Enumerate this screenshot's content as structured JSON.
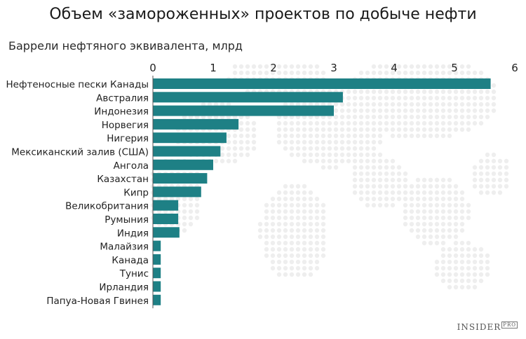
{
  "title": "Объем «замороженных» проектов по добыче нефти",
  "subtitle": "Баррели нефтяного эквивалента, млрд",
  "logo": {
    "brand": "INSIDER",
    "suffix": "PRO"
  },
  "colors": {
    "bar": "#1e8085",
    "axis": "#555555",
    "map": "#eeeeee"
  },
  "chart_data": {
    "type": "bar",
    "orientation": "horizontal",
    "title": "Объем «замороженных» проектов по добыче нефти",
    "subtitle": "Баррели нефтяного эквивалента, млрд",
    "xlim": [
      0,
      6
    ],
    "xticks": [
      "0",
      "1",
      "2",
      "3",
      "4",
      "5",
      "6"
    ],
    "grid": false,
    "categories": [
      "Нефтеносные пески Канады",
      "Австралия",
      "Индонезия",
      "Норвегия",
      "Нигерия",
      "Мексиканский залив (США)",
      "Ангола",
      "Казахстан",
      "Кипр",
      "Великобритания",
      "Румыния",
      "Индия",
      "Малайзия",
      "Канада",
      "Тунис",
      "Ирландия",
      "Папуа-Новая Гвинея"
    ],
    "values": [
      5.6,
      3.15,
      3.0,
      1.42,
      1.22,
      1.12,
      1.0,
      0.9,
      0.8,
      0.42,
      0.42,
      0.44,
      0.13,
      0.13,
      0.13,
      0.13,
      0.13
    ]
  }
}
